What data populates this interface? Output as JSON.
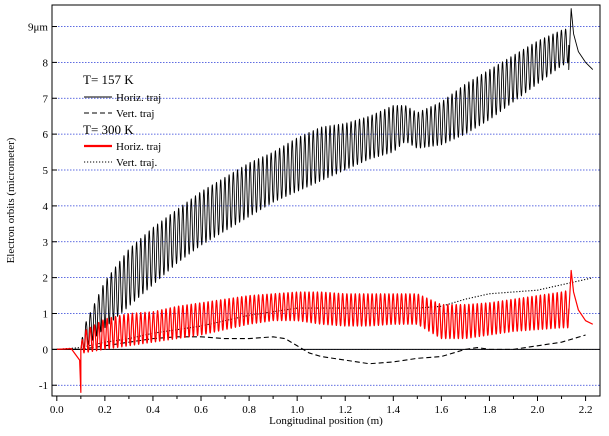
{
  "chart_data": {
    "type": "line",
    "title": "",
    "xlabel": "Longitudinal position (m)",
    "ylabel": "Electron orbits (micrometer)",
    "xlim": [
      -0.02,
      2.26
    ],
    "ylim": [
      -1.3,
      9.6
    ],
    "x_ticks": [
      0.0,
      0.2,
      0.4,
      0.6,
      0.8,
      1.0,
      1.2,
      1.4,
      1.6,
      1.8,
      2.0,
      2.2
    ],
    "x_tick_labels": [
      "0.0",
      "0.2",
      "0.4",
      "0.6",
      "0.8",
      "1.0",
      "1.2",
      "1.4",
      "1.6",
      "1.8",
      "2.0",
      "2.2"
    ],
    "y_ticks": [
      -1,
      0,
      1,
      2,
      3,
      4,
      5,
      6,
      7,
      8,
      9
    ],
    "y_tick_labels": [
      "-1",
      "0",
      "1",
      "2",
      "3",
      "4",
      "5",
      "6",
      "7",
      "8",
      "9μm"
    ],
    "grid": "horizontal dotted blue at each y tick",
    "legend": {
      "placement": "top-left",
      "groups": [
        {
          "title": "T= 157 K",
          "entries": [
            "Horiz. traj",
            "Vert. traj"
          ]
        },
        {
          "title": "T= 300 K",
          "entries": [
            "Horiz. traj",
            "Vert. traj."
          ]
        }
      ]
    },
    "series": [
      {
        "name": "Horiz. traj",
        "group": "T= 157 K",
        "color": "#000000",
        "style": "solid-oscillating",
        "oscillation_period_m": 0.0175,
        "x_range": [
          0.1,
          2.13
        ],
        "envelope_x": [
          0.0,
          0.1,
          0.11,
          0.2,
          0.3,
          0.4,
          0.5,
          0.6,
          0.7,
          0.8,
          0.9,
          1.0,
          1.1,
          1.2,
          1.3,
          1.4,
          1.45,
          1.5,
          1.6,
          1.7,
          1.8,
          1.9,
          2.0,
          2.1,
          2.13
        ],
        "envelope_upper": [
          0.0,
          0.0,
          0.6,
          1.9,
          2.8,
          3.4,
          3.9,
          4.4,
          4.8,
          5.2,
          5.5,
          5.9,
          6.2,
          6.3,
          6.5,
          6.8,
          6.8,
          6.6,
          6.9,
          7.4,
          7.8,
          8.2,
          8.6,
          8.9,
          8.95
        ],
        "envelope_lower": [
          0.0,
          0.0,
          0.0,
          0.6,
          1.2,
          1.8,
          2.4,
          2.9,
          3.3,
          3.7,
          4.1,
          4.4,
          4.7,
          5.0,
          5.3,
          5.5,
          5.8,
          5.6,
          5.7,
          6.0,
          6.4,
          6.9,
          7.4,
          7.9,
          8.0
        ],
        "tail_x": [
          2.13,
          2.14,
          2.15,
          2.17,
          2.2,
          2.23
        ],
        "tail_y": [
          7.8,
          9.5,
          8.8,
          8.3,
          8.0,
          7.8
        ]
      },
      {
        "name": "Vert. traj",
        "group": "T= 157 K",
        "color": "#000000",
        "style": "dashed",
        "x": [
          0.0,
          0.1,
          0.2,
          0.3,
          0.4,
          0.5,
          0.6,
          0.7,
          0.8,
          0.9,
          0.95,
          1.0,
          1.05,
          1.1,
          1.2,
          1.3,
          1.4,
          1.5,
          1.6,
          1.7,
          1.75,
          1.8,
          1.9,
          2.0,
          2.1,
          2.15,
          2.2
        ],
        "values": [
          0.0,
          0.0,
          0.1,
          0.2,
          0.3,
          0.35,
          0.35,
          0.3,
          0.3,
          0.35,
          0.3,
          0.1,
          -0.1,
          -0.2,
          -0.3,
          -0.4,
          -0.35,
          -0.25,
          -0.2,
          0.0,
          0.05,
          0.0,
          0.0,
          0.1,
          0.2,
          0.3,
          0.4
        ]
      },
      {
        "name": "Horiz. traj",
        "group": "T= 300 K",
        "color": "#ff0000",
        "style": "solid-oscillating",
        "oscillation_period_m": 0.0175,
        "x_range": [
          0.1,
          2.13
        ],
        "envelope_x": [
          0.0,
          0.1,
          0.11,
          0.2,
          0.3,
          0.4,
          0.5,
          0.6,
          0.7,
          0.8,
          0.9,
          1.0,
          1.1,
          1.2,
          1.3,
          1.4,
          1.5,
          1.55,
          1.6,
          1.7,
          1.8,
          1.9,
          2.0,
          2.1,
          2.13
        ],
        "envelope_upper": [
          0.0,
          0.0,
          0.5,
          0.85,
          1.0,
          1.05,
          1.2,
          1.3,
          1.4,
          1.5,
          1.55,
          1.6,
          1.6,
          1.55,
          1.55,
          1.55,
          1.55,
          1.4,
          1.25,
          1.25,
          1.3,
          1.4,
          1.5,
          1.6,
          1.65
        ],
        "envelope_lower": [
          0.0,
          0.0,
          -0.1,
          0.0,
          0.1,
          0.2,
          0.3,
          0.4,
          0.55,
          0.7,
          0.8,
          0.8,
          0.7,
          0.65,
          0.65,
          0.7,
          0.7,
          0.5,
          0.3,
          0.3,
          0.4,
          0.5,
          0.55,
          0.6,
          0.6
        ],
        "dip": {
          "x": 0.1,
          "y": -1.2
        },
        "tail_x": [
          2.13,
          2.14,
          2.15,
          2.17,
          2.2,
          2.23
        ],
        "tail_y": [
          1.0,
          2.2,
          1.6,
          1.1,
          0.8,
          0.7
        ]
      },
      {
        "name": "Vert. traj.",
        "group": "T= 300 K",
        "color": "#000000",
        "style": "dotted",
        "x": [
          0.0,
          0.1,
          0.2,
          0.3,
          0.4,
          0.5,
          0.6,
          0.7,
          0.8,
          0.9,
          1.0,
          1.1,
          1.2,
          1.3,
          1.4,
          1.5,
          1.6,
          1.7,
          1.8,
          1.9,
          2.0,
          2.1,
          2.2,
          2.23
        ],
        "values": [
          0.0,
          0.05,
          0.2,
          0.3,
          0.45,
          0.55,
          0.65,
          0.8,
          0.95,
          1.05,
          1.15,
          1.15,
          1.15,
          1.15,
          1.15,
          1.15,
          1.2,
          1.4,
          1.55,
          1.6,
          1.65,
          1.8,
          1.95,
          2.0
        ]
      }
    ]
  }
}
